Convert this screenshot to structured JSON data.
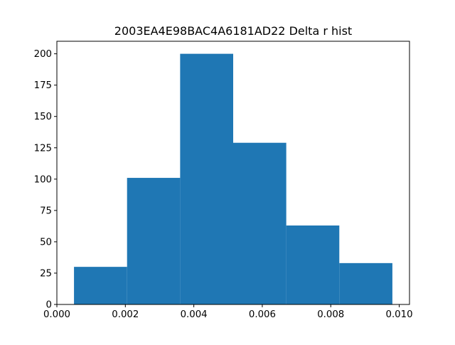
{
  "chart_data": {
    "type": "bar",
    "subtype": "histogram",
    "title": "2003EA4E98BAC4A6181AD22 Delta r hist",
    "xlabel": "",
    "ylabel": "",
    "bin_edges": [
      0.0005,
      0.00205,
      0.0036,
      0.00515,
      0.0067,
      0.00825,
      0.0098
    ],
    "values": [
      30,
      101,
      200,
      129,
      63,
      33
    ],
    "xlim": [
      0.0,
      0.0103
    ],
    "ylim": [
      0,
      210
    ],
    "x_ticks": [
      0.0,
      0.002,
      0.004,
      0.006,
      0.008,
      0.01
    ],
    "x_tick_labels": [
      "0.000",
      "0.002",
      "0.004",
      "0.006",
      "0.008",
      "0.010"
    ],
    "y_ticks": [
      0,
      25,
      50,
      75,
      100,
      125,
      150,
      175,
      200
    ],
    "y_tick_labels": [
      "0",
      "25",
      "50",
      "75",
      "100",
      "125",
      "150",
      "175",
      "200"
    ],
    "bar_color": "#1f77b4",
    "grid": false,
    "legend": "none"
  }
}
